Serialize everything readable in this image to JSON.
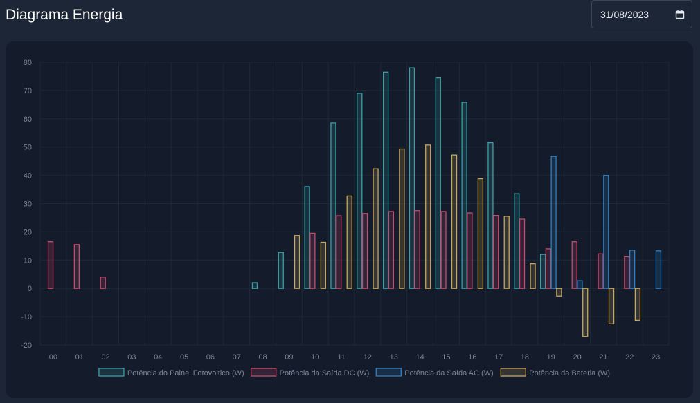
{
  "header": {
    "title": "Diagrama Energia",
    "date_value": "31/08/2023"
  },
  "colors": {
    "background": "#1d2636",
    "card": "#141c2b",
    "axis_text": "#7c8596",
    "grid": "#1f2838"
  },
  "chart_data": {
    "type": "bar",
    "title": "",
    "xlabel": "",
    "ylabel": "",
    "ylim": [
      -20,
      80
    ],
    "yticks": [
      80,
      70,
      60,
      50,
      40,
      30,
      20,
      10,
      0,
      -10,
      -20
    ],
    "grid": true,
    "legend": "bottom",
    "categories": [
      "00",
      "01",
      "02",
      "03",
      "04",
      "05",
      "06",
      "07",
      "08",
      "09",
      "10",
      "11",
      "12",
      "13",
      "14",
      "15",
      "16",
      "17",
      "18",
      "19",
      "20",
      "21",
      "22",
      "23"
    ],
    "series": [
      {
        "name": "Potência do Painel Fotovoltico (W)",
        "stroke": "#3a9fa6",
        "fill": "rgba(58,159,166,0.18)",
        "values": [
          0,
          0,
          0,
          0,
          0,
          0,
          0,
          0,
          2,
          12.7,
          36,
          58.5,
          69,
          76.5,
          78,
          74.5,
          65.8,
          51.5,
          33.5,
          12,
          0,
          0,
          0,
          0
        ]
      },
      {
        "name": "Potência da Saída DC (W)",
        "stroke": "#c84a6c",
        "fill": "rgba(200,74,108,0.18)",
        "values": [
          16.5,
          15.5,
          4,
          0,
          0,
          0,
          0,
          0,
          0,
          0,
          19.5,
          25.7,
          26.5,
          27.2,
          27.5,
          27.2,
          26.7,
          25.8,
          24.5,
          14,
          16.5,
          12.2,
          11.2,
          0
        ]
      },
      {
        "name": "Potência da Saída AC (W)",
        "stroke": "#2f7fc4",
        "fill": "rgba(47,127,196,0.18)",
        "values": [
          0,
          0,
          0,
          0,
          0,
          0,
          0,
          0,
          0,
          0,
          0,
          0,
          0,
          0,
          0,
          0,
          0,
          0,
          0,
          46.7,
          2.7,
          40,
          13.5,
          13.3
        ]
      },
      {
        "name": "Potência da Bateria (W)",
        "stroke": "#c9a75a",
        "fill": "rgba(201,167,90,0.18)",
        "values": [
          0,
          0,
          0,
          0,
          0,
          0,
          0,
          0,
          0,
          18.7,
          16.3,
          32.7,
          42.3,
          49.3,
          50.7,
          47.2,
          38.8,
          25.5,
          8.7,
          -2.7,
          -17,
          -12.5,
          -11.3,
          0
        ]
      }
    ]
  }
}
